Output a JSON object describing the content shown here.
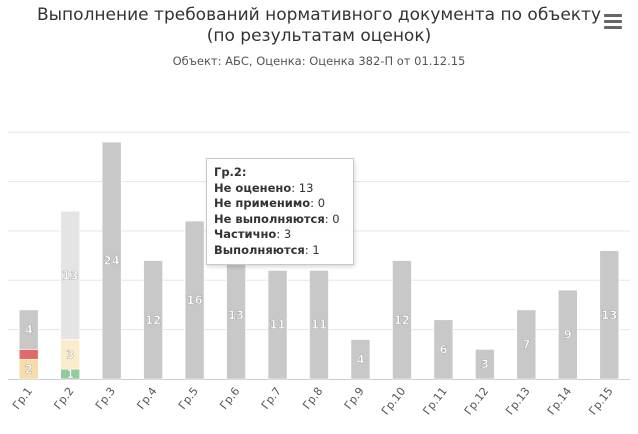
{
  "title_line1": "Выполнение требований нормативного документа по объекту",
  "title_line2": "(по результатам оценок)",
  "subtitle": "Объект: АБС, Оценка: Оценка 382-П от 01.12.15",
  "menu_icon": "hamburger-menu-icon",
  "chart_data": {
    "type": "bar",
    "stacked": true,
    "categories": [
      "Гр.1",
      "Гр.2",
      "Гр.3",
      "Гр.4",
      "Гр.5",
      "Гр.6",
      "Гр.7",
      "Гр.8",
      "Гр.9",
      "Гр.10",
      "Гр.11",
      "Гр.12",
      "Гр.13",
      "Гр.14",
      "Гр.15"
    ],
    "series": [
      {
        "name": "Не оценено",
        "color": "#c8c8c8",
        "values": [
          4,
          13,
          24,
          12,
          16,
          13,
          11,
          11,
          4,
          12,
          6,
          3,
          7,
          9,
          13
        ]
      },
      {
        "name": "Не применимо",
        "color": "#e6e6e6",
        "values": [
          0,
          0,
          0,
          0,
          0,
          0,
          0,
          0,
          0,
          0,
          0,
          0,
          0,
          0,
          0
        ]
      },
      {
        "name": "Не выполняются",
        "color": "#e06a6a",
        "values": [
          1,
          0,
          0,
          0,
          0,
          0,
          0,
          0,
          0,
          0,
          0,
          0,
          0,
          0,
          0
        ]
      },
      {
        "name": "Частично",
        "color": "#f6dca8",
        "values": [
          2,
          3,
          0,
          0,
          0,
          0,
          0,
          0,
          0,
          0,
          0,
          0,
          0,
          0,
          0
        ]
      },
      {
        "name": "Выполняются",
        "color": "#7fc28a",
        "values": [
          0,
          1,
          0,
          0,
          0,
          0,
          0,
          0,
          0,
          0,
          0,
          0,
          0,
          0,
          0
        ]
      }
    ],
    "grid": true,
    "ylim": [
      0,
      25
    ]
  },
  "tooltip": {
    "title": "Гр.2:",
    "rows": [
      {
        "label": "Не оценено",
        "value": "13"
      },
      {
        "label": "Не применимо",
        "value": "0"
      },
      {
        "label": "Не выполняются",
        "value": "0"
      },
      {
        "label": "Частично",
        "value": "3"
      },
      {
        "label": "Выполняются",
        "value": "1"
      }
    ]
  }
}
